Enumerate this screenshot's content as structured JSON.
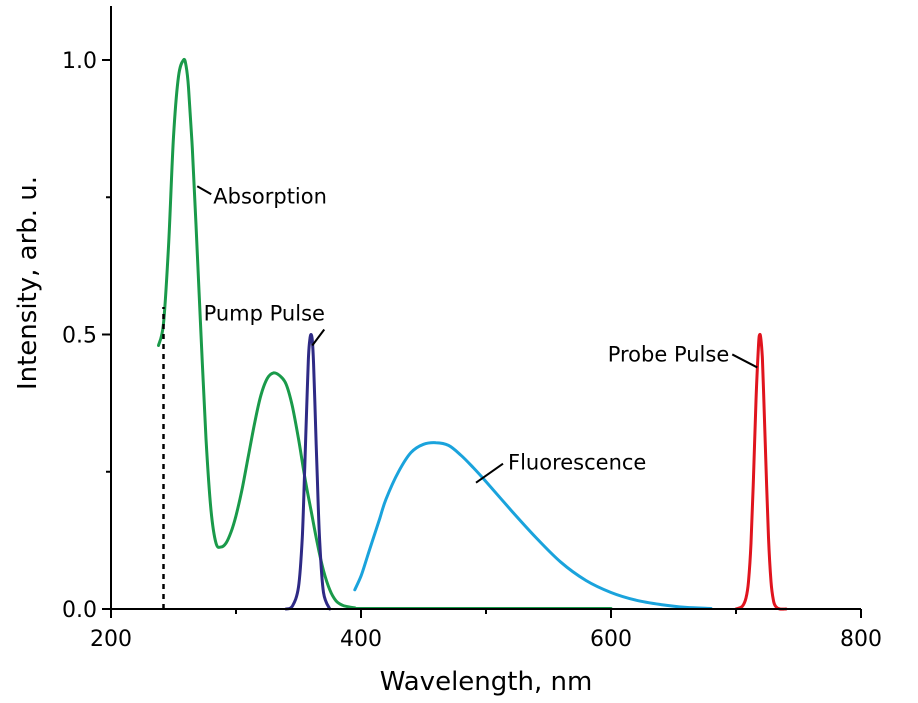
{
  "chart_data": {
    "type": "line",
    "xlabel": "Wavelength, nm",
    "ylabel": "Intensity, arb. u.",
    "xlim": [
      200,
      800
    ],
    "ylim": [
      0,
      1.1
    ],
    "xticks": [
      200,
      400,
      600,
      800
    ],
    "xtick_labels": [
      "200",
      "400",
      "600",
      "800"
    ],
    "yticks": [
      0.0,
      0.5,
      1.0
    ],
    "ytick_labels": [
      "0.0",
      "0.5",
      "1.0"
    ],
    "grid": false,
    "legend": "none",
    "series": [
      {
        "name": "Absorption",
        "color": "#1a9a4a",
        "x": [
          238,
          242,
          246,
          250,
          254,
          258,
          260,
          262,
          265,
          268,
          272,
          276,
          280,
          284,
          288,
          292,
          296,
          300,
          305,
          310,
          315,
          320,
          325,
          330,
          335,
          340,
          345,
          350,
          355,
          360,
          365,
          370,
          375,
          380,
          385,
          390,
          395,
          400,
          450,
          500,
          550,
          600
        ],
        "y": [
          0.48,
          0.52,
          0.66,
          0.86,
          0.97,
          1.0,
          0.99,
          0.95,
          0.84,
          0.7,
          0.5,
          0.31,
          0.18,
          0.12,
          0.113,
          0.12,
          0.14,
          0.17,
          0.22,
          0.28,
          0.34,
          0.39,
          0.42,
          0.43,
          0.425,
          0.41,
          0.37,
          0.31,
          0.24,
          0.18,
          0.12,
          0.07,
          0.035,
          0.015,
          0.007,
          0.004,
          0.002,
          0.001,
          0.001,
          0.001,
          0.001,
          0.001
        ]
      },
      {
        "name": "Pump Pulse",
        "color": "#2e2a85",
        "x": [
          340,
          345,
          350,
          353,
          355,
          357,
          358,
          359,
          360,
          361,
          362,
          363,
          365,
          367,
          370,
          375
        ],
        "y": [
          0.0,
          0.005,
          0.04,
          0.13,
          0.26,
          0.4,
          0.46,
          0.49,
          0.5,
          0.49,
          0.45,
          0.38,
          0.24,
          0.12,
          0.03,
          0.0
        ]
      },
      {
        "name": "Fluorescence",
        "color": "#1aa3dc",
        "x": [
          395,
          400,
          405,
          410,
          415,
          420,
          430,
          440,
          450,
          460,
          470,
          480,
          490,
          500,
          520,
          540,
          560,
          580,
          600,
          620,
          640,
          660,
          680
        ],
        "y": [
          0.035,
          0.06,
          0.095,
          0.13,
          0.165,
          0.2,
          0.25,
          0.285,
          0.3,
          0.303,
          0.298,
          0.28,
          0.257,
          0.232,
          0.18,
          0.13,
          0.085,
          0.052,
          0.03,
          0.016,
          0.008,
          0.003,
          0.001
        ]
      },
      {
        "name": "Probe Pulse",
        "color": "#e0141e",
        "x": [
          700,
          705,
          708,
          710,
          712,
          714,
          716,
          718,
          719,
          720,
          721,
          722,
          724,
          726,
          728,
          730,
          732,
          735,
          740
        ],
        "y": [
          0.0,
          0.005,
          0.02,
          0.05,
          0.12,
          0.24,
          0.38,
          0.48,
          0.5,
          0.49,
          0.46,
          0.4,
          0.26,
          0.13,
          0.05,
          0.015,
          0.004,
          0.0,
          0.0
        ]
      }
    ],
    "annotations": [
      {
        "text": "Absorption",
        "target_x": 269,
        "target_y": 0.77,
        "anchor": "right-below"
      },
      {
        "text": "Pump Pulse",
        "target_x": 361,
        "target_y": 0.48,
        "anchor": "above"
      },
      {
        "text": "Fluorescence",
        "target_x": 492,
        "target_y": 0.23,
        "anchor": "right-above"
      },
      {
        "text": "Probe Pulse",
        "target_x": 717,
        "target_y": 0.44,
        "anchor": "left-above"
      }
    ],
    "reference_line": {
      "x": 242,
      "y_range": [
        0.0,
        0.55
      ],
      "style": "dashed"
    }
  }
}
